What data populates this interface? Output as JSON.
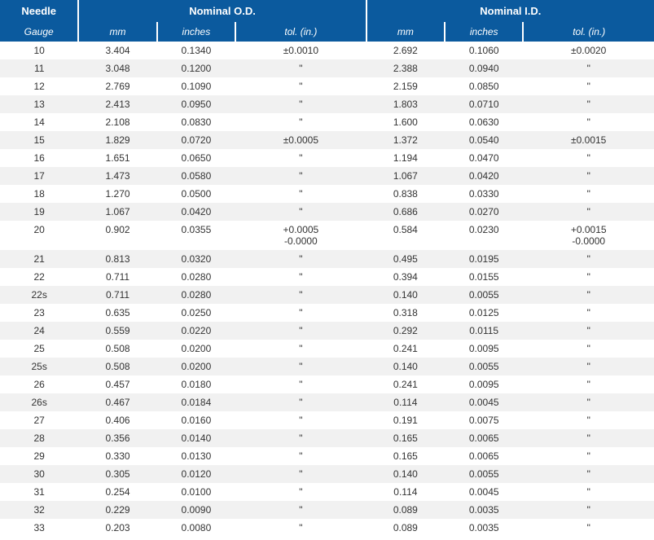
{
  "table": {
    "header_bg": "#0b5a9e",
    "header_color": "#ffffff",
    "stripe_bg": "#f1f1f1",
    "text_color": "#333333",
    "font_family": "Arial",
    "font_size_header": 13,
    "font_size_subheader": 12,
    "font_size_body": 12,
    "top_headers": {
      "needle": "Needle",
      "od": "Nominal O.D.",
      "id": "Nominal I.D."
    },
    "sub_headers": {
      "gauge": "Gauge",
      "od_mm": "mm",
      "od_in": "inches",
      "od_tol": "tol. (in.)",
      "id_mm": "mm",
      "id_in": "inches",
      "id_tol": "tol. (in.)"
    },
    "rows": [
      {
        "gauge": "10",
        "od_mm": "3.404",
        "od_in": "0.1340",
        "od_tol": "±0.0010",
        "id_mm": "2.692",
        "id_in": "0.1060",
        "id_tol": "±0.0020"
      },
      {
        "gauge": "11",
        "od_mm": "3.048",
        "od_in": "0.1200",
        "od_tol": "\"",
        "id_mm": "2.388",
        "id_in": "0.0940",
        "id_tol": "\""
      },
      {
        "gauge": "12",
        "od_mm": "2.769",
        "od_in": "0.1090",
        "od_tol": "\"",
        "id_mm": "2.159",
        "id_in": "0.0850",
        "id_tol": "\""
      },
      {
        "gauge": "13",
        "od_mm": "2.413",
        "od_in": "0.0950",
        "od_tol": "\"",
        "id_mm": "1.803",
        "id_in": "0.0710",
        "id_tol": "\""
      },
      {
        "gauge": "14",
        "od_mm": "2.108",
        "od_in": "0.0830",
        "od_tol": "\"",
        "id_mm": "1.600",
        "id_in": "0.0630",
        "id_tol": "\""
      },
      {
        "gauge": "15",
        "od_mm": "1.829",
        "od_in": "0.0720",
        "od_tol": "±0.0005",
        "id_mm": "1.372",
        "id_in": "0.0540",
        "id_tol": "±0.0015"
      },
      {
        "gauge": "16",
        "od_mm": "1.651",
        "od_in": "0.0650",
        "od_tol": "\"",
        "id_mm": "1.194",
        "id_in": "0.0470",
        "id_tol": "\""
      },
      {
        "gauge": "17",
        "od_mm": "1.473",
        "od_in": "0.0580",
        "od_tol": "\"",
        "id_mm": "1.067",
        "id_in": "0.0420",
        "id_tol": "\""
      },
      {
        "gauge": "18",
        "od_mm": "1.270",
        "od_in": "0.0500",
        "od_tol": "\"",
        "id_mm": "0.838",
        "id_in": "0.0330",
        "id_tol": "\""
      },
      {
        "gauge": "19",
        "od_mm": "1.067",
        "od_in": "0.0420",
        "od_tol": "\"",
        "id_mm": "0.686",
        "id_in": "0.0270",
        "id_tol": "\""
      },
      {
        "gauge": "20",
        "od_mm": "0.902",
        "od_in": "0.0355",
        "od_tol": "+0.0005\n-0.0000",
        "id_mm": "0.584",
        "id_in": "0.0230",
        "id_tol": "+0.0015\n-0.0000"
      },
      {
        "gauge": "21",
        "od_mm": "0.813",
        "od_in": "0.0320",
        "od_tol": "\"",
        "id_mm": "0.495",
        "id_in": "0.0195",
        "id_tol": "\""
      },
      {
        "gauge": "22",
        "od_mm": "0.711",
        "od_in": "0.0280",
        "od_tol": "\"",
        "id_mm": "0.394",
        "id_in": "0.0155",
        "id_tol": "\""
      },
      {
        "gauge": "22s",
        "od_mm": "0.711",
        "od_in": "0.0280",
        "od_tol": "\"",
        "id_mm": "0.140",
        "id_in": "0.0055",
        "id_tol": "\""
      },
      {
        "gauge": "23",
        "od_mm": "0.635",
        "od_in": "0.0250",
        "od_tol": "\"",
        "id_mm": "0.318",
        "id_in": "0.0125",
        "id_tol": "\""
      },
      {
        "gauge": "24",
        "od_mm": "0.559",
        "od_in": "0.0220",
        "od_tol": "\"",
        "id_mm": "0.292",
        "id_in": "0.0115",
        "id_tol": "\""
      },
      {
        "gauge": "25",
        "od_mm": "0.508",
        "od_in": "0.0200",
        "od_tol": "\"",
        "id_mm": "0.241",
        "id_in": "0.0095",
        "id_tol": "\""
      },
      {
        "gauge": "25s",
        "od_mm": "0.508",
        "od_in": "0.0200",
        "od_tol": "\"",
        "id_mm": "0.140",
        "id_in": "0.0055",
        "id_tol": "\""
      },
      {
        "gauge": "26",
        "od_mm": "0.457",
        "od_in": "0.0180",
        "od_tol": "\"",
        "id_mm": "0.241",
        "id_in": "0.0095",
        "id_tol": "\""
      },
      {
        "gauge": "26s",
        "od_mm": "0.467",
        "od_in": "0.0184",
        "od_tol": "\"",
        "id_mm": "0.114",
        "id_in": "0.0045",
        "id_tol": "\""
      },
      {
        "gauge": "27",
        "od_mm": "0.406",
        "od_in": "0.0160",
        "od_tol": "\"",
        "id_mm": "0.191",
        "id_in": "0.0075",
        "id_tol": "\""
      },
      {
        "gauge": "28",
        "od_mm": "0.356",
        "od_in": "0.0140",
        "od_tol": "\"",
        "id_mm": "0.165",
        "id_in": "0.0065",
        "id_tol": "\""
      },
      {
        "gauge": "29",
        "od_mm": "0.330",
        "od_in": "0.0130",
        "od_tol": "\"",
        "id_mm": "0.165",
        "id_in": "0.0065",
        "id_tol": "\""
      },
      {
        "gauge": "30",
        "od_mm": "0.305",
        "od_in": "0.0120",
        "od_tol": "\"",
        "id_mm": "0.140",
        "id_in": "0.0055",
        "id_tol": "\""
      },
      {
        "gauge": "31",
        "od_mm": "0.254",
        "od_in": "0.0100",
        "od_tol": "\"",
        "id_mm": "0.114",
        "id_in": "0.0045",
        "id_tol": "\""
      },
      {
        "gauge": "32",
        "od_mm": "0.229",
        "od_in": "0.0090",
        "od_tol": "\"",
        "id_mm": "0.089",
        "id_in": "0.0035",
        "id_tol": "\""
      },
      {
        "gauge": "33",
        "od_mm": "0.203",
        "od_in": "0.0080",
        "od_tol": "\"",
        "id_mm": "0.089",
        "id_in": "0.0035",
        "id_tol": "\""
      }
    ]
  }
}
